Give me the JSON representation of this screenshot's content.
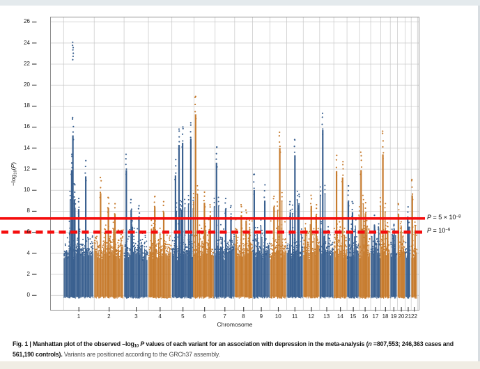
{
  "page": {
    "top_strip_color": "#e4eaed",
    "right_strip_color": "#d8dde1",
    "bottom_strip_color": "#f0ede4",
    "background": "#ffffff"
  },
  "chart_data": {
    "type": "scatter",
    "subtype": "manhattan-plot",
    "title": "",
    "xlabel": "Chromosome",
    "ylabel": "-log10(P)",
    "ylabel_parts": {
      "prefix": "−log",
      "sub": "10",
      "open": "(",
      "p": "P",
      "close": ")"
    },
    "ylim": [
      0,
      26
    ],
    "yticks": [
      0,
      2,
      4,
      6,
      8,
      10,
      12,
      14,
      16,
      18,
      20,
      22,
      24,
      26
    ],
    "grid": true,
    "legend": "none",
    "point_colors": {
      "odd_chromosomes": "#3B6190",
      "even_chromosomes": "#C77C2F"
    },
    "grid_color": "#c6c6c6",
    "threshold_lines": [
      {
        "value": 7.3,
        "style": "solid",
        "color": "#F50D0D",
        "label_p": "P",
        "label_base": " = 5 × 10",
        "label_sup": "−8"
      },
      {
        "value": 6.0,
        "style": "dashed",
        "color": "#F50D0D",
        "label_p": "P",
        "label_base": " = 10",
        "label_sup": "−6"
      }
    ],
    "chromosomes": [
      {
        "label": "1",
        "length_mb": 249.3,
        "peaks": [
          {
            "pos": 0.31,
            "top": 16.9,
            "dense": 15.2,
            "isolated_segment": [
              22.4,
              24.2
            ]
          },
          {
            "pos": 0.27,
            "top": 13.4
          },
          {
            "pos": 0.36,
            "top": 10.6
          },
          {
            "pos": 0.5,
            "top": 9.2
          },
          {
            "pos": 0.73,
            "top": 12.8
          }
        ],
        "note": "top locus reaches -log10P ~24.2 with gap below to 22.4; dense cluster to ~16.9"
      },
      {
        "label": "2",
        "length_mb": 243.2,
        "peaks": [
          {
            "pos": 0.22,
            "top": 11.2
          },
          {
            "pos": 0.48,
            "top": 9.3
          },
          {
            "pos": 0.7,
            "top": 8.7
          }
        ]
      },
      {
        "label": "3",
        "length_mb": 198.0,
        "peaks": [
          {
            "pos": 0.1,
            "top": 13.4
          },
          {
            "pos": 0.3,
            "top": 9.1
          },
          {
            "pos": 0.62,
            "top": 8.5
          }
        ]
      },
      {
        "label": "4",
        "length_mb": 191.2,
        "peaks": [
          {
            "pos": 0.28,
            "top": 9.4
          },
          {
            "pos": 0.66,
            "top": 8.9
          }
        ]
      },
      {
        "label": "5",
        "length_mb": 180.9,
        "peaks": [
          {
            "pos": 0.17,
            "top": 12.9
          },
          {
            "pos": 0.33,
            "top": 15.8
          },
          {
            "pos": 0.49,
            "top": 16.0
          },
          {
            "pos": 0.86,
            "top": 16.4
          }
        ]
      },
      {
        "label": "6",
        "length_mb": 171.1,
        "peaks": [
          {
            "pos": 0.08,
            "top": 18.9,
            "dense": 17.2
          },
          {
            "pos": 0.5,
            "top": 9.8
          },
          {
            "pos": 0.78,
            "top": 8.6
          }
        ]
      },
      {
        "label": "7",
        "length_mb": 159.1,
        "peaks": [
          {
            "pos": 0.08,
            "top": 14.1
          },
          {
            "pos": 0.55,
            "top": 9.2
          },
          {
            "pos": 0.82,
            "top": 8.5
          }
        ]
      },
      {
        "label": "8",
        "length_mb": 146.4,
        "peaks": [
          {
            "pos": 0.38,
            "top": 8.6
          },
          {
            "pos": 0.65,
            "top": 8.1
          }
        ]
      },
      {
        "label": "9",
        "length_mb": 141.2,
        "peaks": [
          {
            "pos": 0.1,
            "top": 11.5
          },
          {
            "pos": 0.71,
            "top": 10.5
          }
        ]
      },
      {
        "label": "10",
        "length_mb": 135.5,
        "peaks": [
          {
            "pos": 0.25,
            "top": 9.4
          },
          {
            "pos": 0.6,
            "top": 15.5
          }
        ]
      },
      {
        "label": "11",
        "length_mb": 135.0,
        "peaks": [
          {
            "pos": 0.23,
            "top": 8.9
          },
          {
            "pos": 0.51,
            "top": 14.8
          },
          {
            "pos": 0.75,
            "top": 9.6
          }
        ]
      },
      {
        "label": "12",
        "length_mb": 133.9,
        "peaks": [
          {
            "pos": 0.5,
            "top": 9.5
          },
          {
            "pos": 0.8,
            "top": 8.6
          }
        ]
      },
      {
        "label": "13",
        "length_mb": 115.2,
        "peaks": [
          {
            "pos": 0.23,
            "top": 17.3,
            "dense": 15.7
          }
        ]
      },
      {
        "label": "14",
        "length_mb": 107.3,
        "peaks": [
          {
            "pos": 0.22,
            "top": 13.3
          },
          {
            "pos": 0.68,
            "top": 12.7
          }
        ]
      },
      {
        "label": "15",
        "length_mb": 102.5,
        "peaks": [
          {
            "pos": 0.12,
            "top": 10.4
          },
          {
            "pos": 0.45,
            "top": 8.9
          }
        ]
      },
      {
        "label": "16",
        "length_mb": 90.4,
        "peaks": [
          {
            "pos": 0.15,
            "top": 13.6,
            "dense": 11.9
          },
          {
            "pos": 0.55,
            "top": 8.8
          }
        ]
      },
      {
        "label": "17",
        "length_mb": 81.2,
        "peaks": [
          {
            "pos": 0.4,
            "top": 7.6
          }
        ]
      },
      {
        "label": "18",
        "length_mb": 78.1,
        "peaks": [
          {
            "pos": 0.25,
            "top": 15.6,
            "dense": 13.4
          }
        ]
      },
      {
        "label": "19",
        "length_mb": 59.1,
        "peaks": [
          {
            "pos": 0.5,
            "top": 6.6
          }
        ]
      },
      {
        "label": "20",
        "length_mb": 63.0,
        "peaks": [
          {
            "pos": 0.15,
            "top": 8.7
          }
        ]
      },
      {
        "label": "21",
        "length_mb": 48.1,
        "peaks": [
          {
            "pos": 0.45,
            "top": 8.4
          }
        ]
      },
      {
        "label": "22",
        "length_mb": 51.3,
        "peaks": [
          {
            "pos": 0.2,
            "top": 11.0
          }
        ]
      }
    ]
  },
  "caption": {
    "b1": "Fig. 1 | Manhattan plot of the observed –log",
    "b1_sub": "10",
    "b1_p": " P",
    "b2": " values of each variant for an association with depression in the meta-analysis (",
    "n_ital": "n",
    "b3": " =807,553; 246,363 cases and 561,190 controls). ",
    "regular": "Variants are positioned according to the GRCh37 assembly."
  }
}
